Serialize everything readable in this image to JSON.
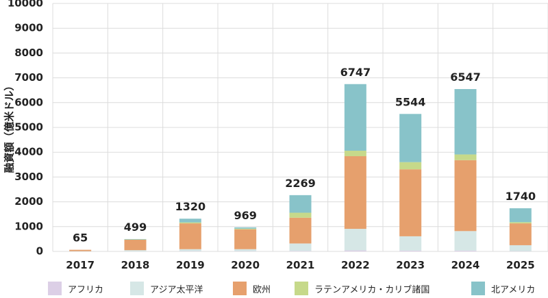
{
  "chart_data": {
    "type": "bar",
    "stacked": true,
    "title": "",
    "xlabel": "",
    "ylabel": "融資額（億米ドル）",
    "ylim": [
      0,
      10000
    ],
    "yticks": [
      0,
      1000,
      2000,
      3000,
      4000,
      5000,
      6000,
      7000,
      8000,
      9000,
      10000
    ],
    "grid": true,
    "legend_position": "bottom",
    "categories": [
      "2017",
      "2018",
      "2019",
      "2020",
      "2021",
      "2022",
      "2023",
      "2024",
      "2025"
    ],
    "totals": [
      65,
      499,
      1320,
      969,
      2269,
      6747,
      5544,
      6547,
      1740
    ],
    "series": [
      {
        "name": "アフリカ",
        "color": "#dccfe6",
        "values": [
          0,
          0,
          10,
          10,
          20,
          40,
          30,
          30,
          10
        ]
      },
      {
        "name": "アジア太平洋",
        "color": "#d6e7e6",
        "values": [
          10,
          50,
          80,
          80,
          300,
          870,
          580,
          790,
          240
        ]
      },
      {
        "name": "欧州",
        "color": "#e6a06d",
        "values": [
          55,
          420,
          1040,
          800,
          1040,
          2930,
          2700,
          2860,
          880
        ]
      },
      {
        "name": "ラテンアメリカ・カリブ諸国",
        "color": "#c6d98a",
        "values": [
          0,
          10,
          40,
          30,
          200,
          220,
          290,
          230,
          50
        ]
      },
      {
        "name": "北アメリカ",
        "color": "#88c3c9",
        "values": [
          0,
          19,
          150,
          49,
          709,
          2687,
          1944,
          2637,
          560
        ]
      }
    ]
  }
}
